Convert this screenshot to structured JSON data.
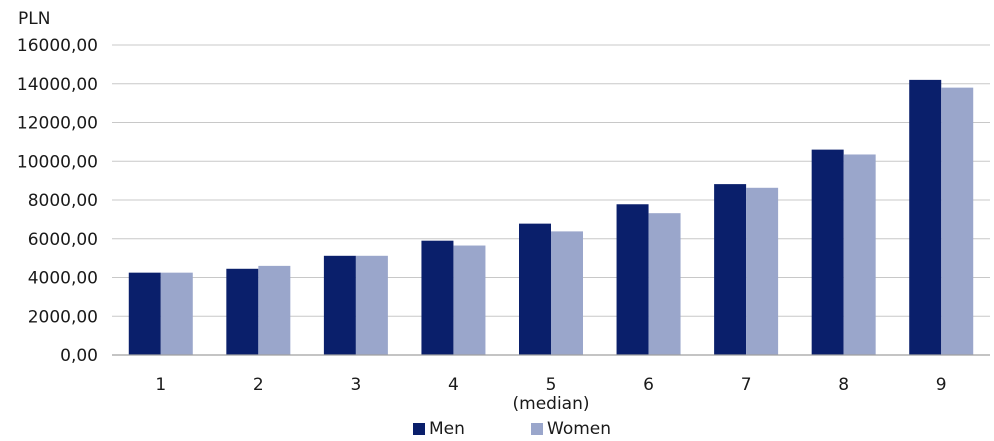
{
  "chart_data": {
    "type": "bar",
    "title": "",
    "ylabel": "PLN",
    "xlabel": "",
    "categories": [
      "1",
      "2",
      "3",
      "4",
      "5\n(median)",
      "6",
      "7",
      "8",
      "9"
    ],
    "yticks": [
      "0,00",
      "2000,00",
      "4000,00",
      "6000,00",
      "8000,00",
      "10000,00",
      "12000,00",
      "14000,00",
      "16000,00"
    ],
    "ylim": [
      0,
      16000
    ],
    "grid": true,
    "legend_position": "bottom",
    "series": [
      {
        "name": "Men",
        "color": "#0a1f6b",
        "values": [
          4250,
          4450,
          5120,
          5900,
          6780,
          7780,
          8820,
          10600,
          14200
        ]
      },
      {
        "name": "Women",
        "color": "#9aa6cb",
        "values": [
          4250,
          4600,
          5120,
          5650,
          6380,
          7320,
          8630,
          10350,
          13800
        ]
      }
    ]
  }
}
